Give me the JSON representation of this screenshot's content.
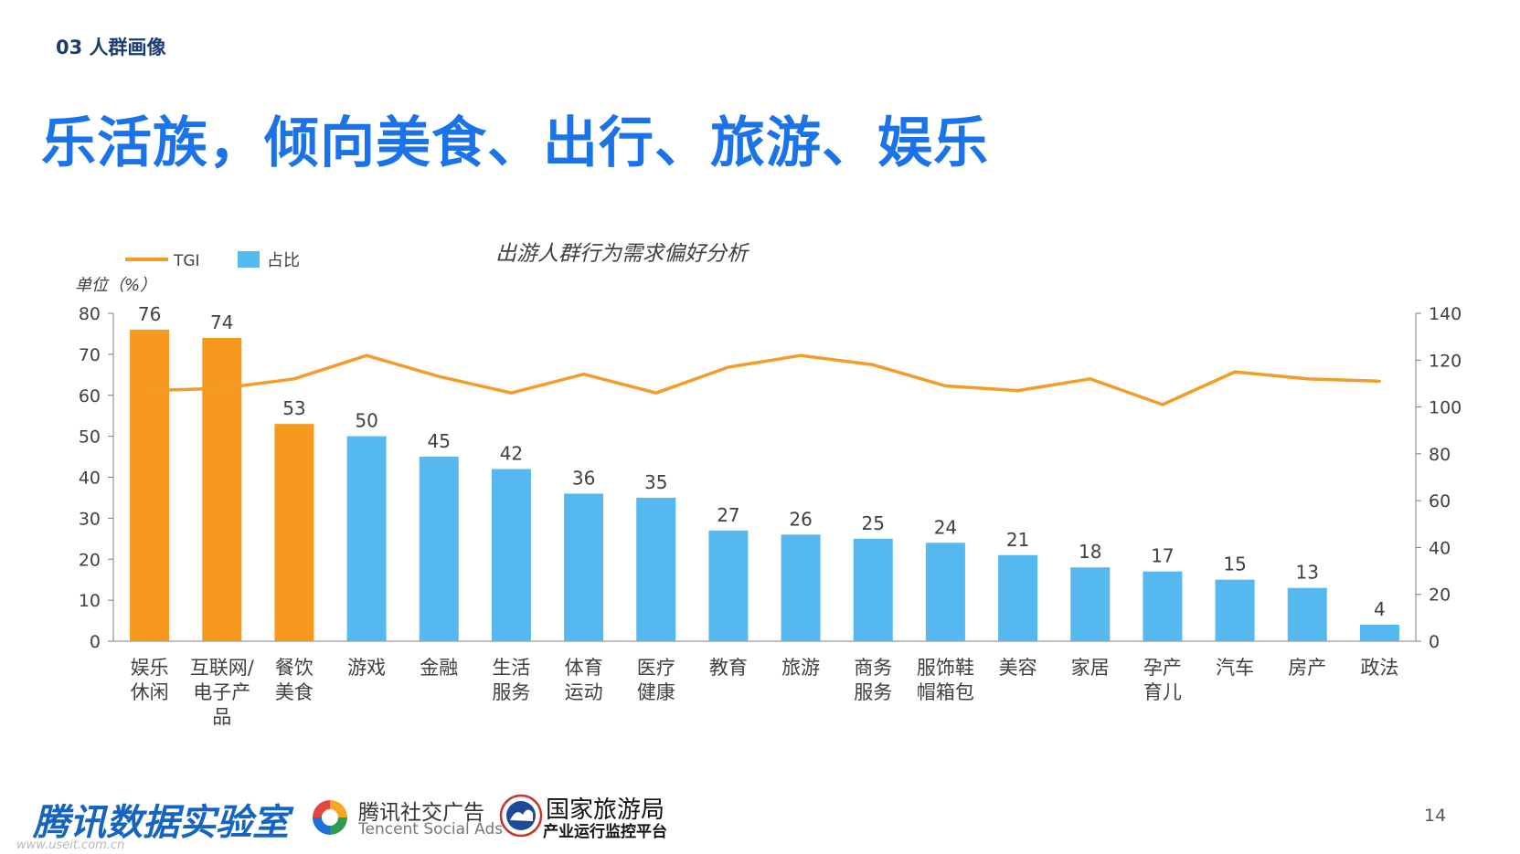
{
  "header": {
    "section": "03 人群画像",
    "headline": "乐活族，倾向美食、出行、旅游、娱乐"
  },
  "chart_data": {
    "type": "bar",
    "title": "出游人群行为需求偏好分析",
    "unit_label": "单位（%）",
    "categories": [
      "娱乐\n休闲",
      "互联网/\n电子产\n品",
      "餐饮\n美食",
      "游戏",
      "金融",
      "生活\n服务",
      "体育\n运动",
      "医疗\n健康",
      "教育",
      "旅游",
      "商务\n服务",
      "服饰鞋\n帽箱包",
      "美容",
      "家居",
      "孕产\n育儿",
      "汽车",
      "房产",
      "政法"
    ],
    "series": [
      {
        "name": "占比",
        "kind": "bar",
        "axis": "left",
        "values": [
          76,
          74,
          53,
          50,
          45,
          42,
          36,
          35,
          27,
          26,
          25,
          24,
          21,
          18,
          17,
          15,
          13,
          4
        ],
        "highlight_count": 3
      },
      {
        "name": "TGI",
        "kind": "line",
        "axis": "right",
        "values": [
          107,
          108,
          112,
          122,
          113,
          106,
          114,
          106,
          117,
          122,
          118,
          109,
          107,
          112,
          101,
          115,
          112,
          111
        ]
      }
    ],
    "y_left": {
      "min": 0,
      "max": 80,
      "ticks": [
        0,
        10,
        20,
        30,
        40,
        50,
        60,
        70,
        80
      ]
    },
    "y_right": {
      "min": 0,
      "max": 140,
      "ticks": [
        0,
        20,
        40,
        60,
        80,
        100,
        120,
        140
      ]
    },
    "legend": {
      "position": "top-left"
    },
    "grid": false,
    "colors": {
      "highlight_bar": "#f7981f",
      "bar": "#55b8ee",
      "line": "#f39c27",
      "axis": "#7f7f7f",
      "text": "#404040"
    }
  },
  "footer": {
    "brand": "腾讯数据实验室",
    "url": "www.useit.com.cn",
    "ads_name": "腾讯社交广告",
    "ads_name_en": "Tencent Social Ads",
    "ads_icon": "tencent-ads-logo-icon",
    "org_name": "国家旅游局",
    "org_sub": "产业运行监控平台",
    "org_icon": "cnta-emblem-icon",
    "page": "14"
  }
}
